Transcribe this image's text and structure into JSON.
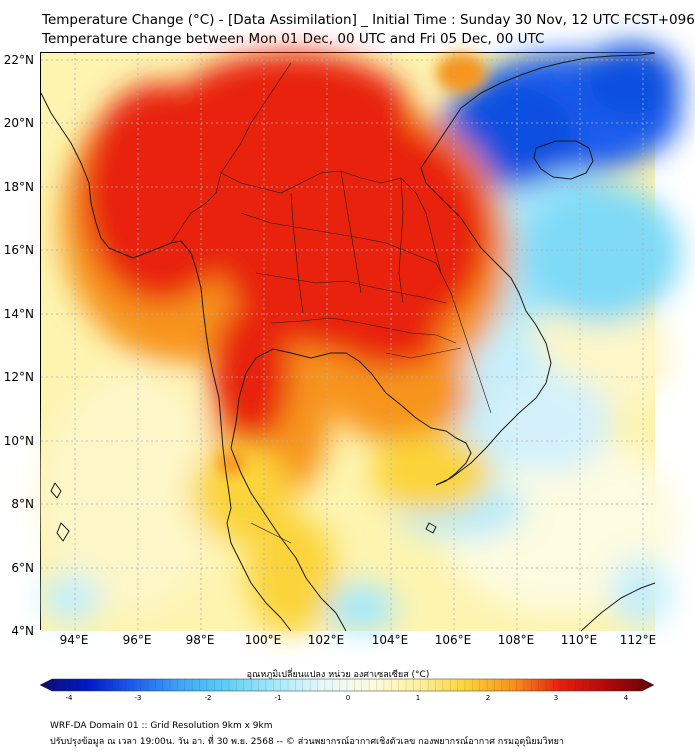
{
  "header": {
    "title_line1": "Temperature Change (°C) - [Data Assimilation] _ Initial Time : Sunday 30 Nov, 12 UTC FCST+096",
    "title_line2": "Temperature change between Mon 01 Dec, 00 UTC and Fri 05 Dec, 00 UTC"
  },
  "map": {
    "lat_labels": [
      "22°N",
      "20°N",
      "18°N",
      "16°N",
      "14°N",
      "12°N",
      "10°N",
      "8°N",
      "6°N",
      "4°N"
    ],
    "lon_labels": [
      "94°E",
      "96°E",
      "98°E",
      "100°E",
      "102°E",
      "104°E",
      "106°E",
      "108°E",
      "110°E",
      "112°E"
    ],
    "lat_range": [
      4,
      22.25
    ],
    "lon_range": [
      93,
      112.4
    ],
    "colors": {
      "strong_warm": "#e8200c",
      "warm": "#f7941d",
      "mild_warm": "#fbd43b",
      "slight_warm": "#fdf4a0",
      "neutral": "#fdfbe0",
      "slight_cool": "#d4f1fb",
      "cool": "#5fd1f5",
      "strong_cool": "#0a4fe0",
      "very_cool": "#0019c8",
      "coastline": "#1a1a1a",
      "gridline": "#b0b0b0"
    }
  },
  "colorbar": {
    "title": "อุณหภูมิเปลี่ยนแปลง หน่วย องศาเซลเซียส (°C)",
    "ticks": [
      "-4",
      "-3",
      "-2",
      "-1",
      "0",
      "1",
      "2",
      "3",
      "4"
    ],
    "min": -4,
    "max": 4,
    "stops": [
      "#0d0d6b",
      "#0019c8",
      "#1e5ff0",
      "#3fa6f7",
      "#5fd1f5",
      "#a9e8fb",
      "#e6f8fc",
      "#fdfbe0",
      "#fdf1a0",
      "#fbd43b",
      "#f7941d",
      "#e8200c",
      "#b3080a",
      "#5e0306"
    ]
  },
  "footer": {
    "line1": "WRF-DA Domain 01 :: Grid Resolution 9km x 9km",
    "line2": "ปรับปรุงข้อมูล ณ เวลา 19:00น. วัน อา. ที่ 30 พ.ย. 2568 -- © ส่วนพยากรณ์อากาศเชิงตัวเลข กองพยากรณ์อากาศ กรมอุตุนิยมวิทยา"
  }
}
